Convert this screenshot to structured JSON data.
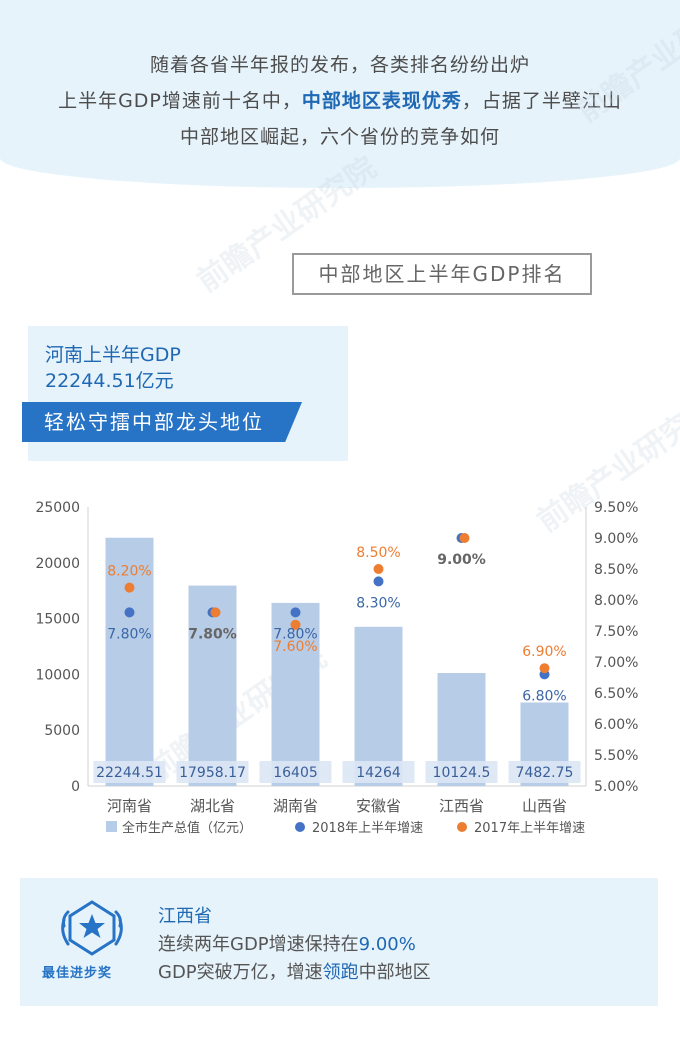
{
  "intro": {
    "line1": "随着各省半年报的发布，各类排名纷纷出炉",
    "line2_prefix": "上半年GDP增速前十名中，",
    "line2_highlight": "中部地区表现优秀",
    "line2_suffix": "，占据了半壁江山",
    "line3": "中部地区崛起，六个省份的竞争如何"
  },
  "watermark": "前瞻产业研究院",
  "section_title": "中部地区上半年GDP排名",
  "highlight_panel": {
    "title": "河南上半年GDP",
    "value": "22244.51亿元",
    "ribbon": "轻松守擂中部龙头地位"
  },
  "chart_data": {
    "type": "bar",
    "categories": [
      "河南省",
      "湖北省",
      "湖南省",
      "安徽省",
      "江西省",
      "山西省"
    ],
    "series": [
      {
        "name": "全市生产总值（亿元）",
        "type": "bar",
        "axis": "left",
        "values": [
          22244.51,
          17958.17,
          16405,
          14264,
          10124.5,
          7482.75
        ],
        "labels": [
          "22244.51",
          "17958.17",
          "16405",
          "14264",
          "10124.5",
          "7482.75"
        ]
      },
      {
        "name": "2018年上半年增速",
        "type": "scatter",
        "axis": "right",
        "values": [
          7.8,
          7.8,
          7.8,
          8.3,
          9.0,
          6.8
        ],
        "labels": [
          "7.80%",
          "7.80%",
          "7.80%",
          "8.30%",
          "9.00%",
          "6.80%"
        ]
      },
      {
        "name": "2017年上半年增速",
        "type": "scatter",
        "axis": "right",
        "values": [
          8.2,
          7.8,
          7.6,
          8.5,
          9.0,
          6.9
        ],
        "labels": [
          "8.20%",
          "",
          "7.60%",
          "8.50%",
          "",
          "6.90%"
        ]
      }
    ],
    "ylim_left": [
      0,
      25000
    ],
    "yticks_left": [
      "0",
      "5000",
      "10000",
      "15000",
      "20000",
      "25000"
    ],
    "ylim_right": [
      5.0,
      9.5
    ],
    "yticks_right": [
      "5.00%",
      "5.50%",
      "6.00%",
      "6.50%",
      "7.00%",
      "7.50%",
      "8.00%",
      "8.50%",
      "9.00%",
      "9.50%"
    ],
    "colors": {
      "bar": "#b7cce6",
      "bar_label": "#3a5f98",
      "dot2018": "#4472c4",
      "dot2017": "#ed7d31",
      "label2018": "#3a66a8",
      "label2017": "#ed7d31",
      "overlap_label": "#666666"
    },
    "overlap_labels": [
      "",
      "7.80%",
      "",
      "",
      "9.00%",
      ""
    ],
    "legend_position": "bottom",
    "grid": false
  },
  "bottom_panel": {
    "award_label": "最佳进步奖",
    "title": "江西省",
    "line1_prefix": "连续两年GDP增速保持在",
    "line1_highlight": "9.00%",
    "line2_prefix": "GDP突破万亿，增速",
    "line2_highlight": "领跑",
    "line2_suffix": "中部地区"
  }
}
